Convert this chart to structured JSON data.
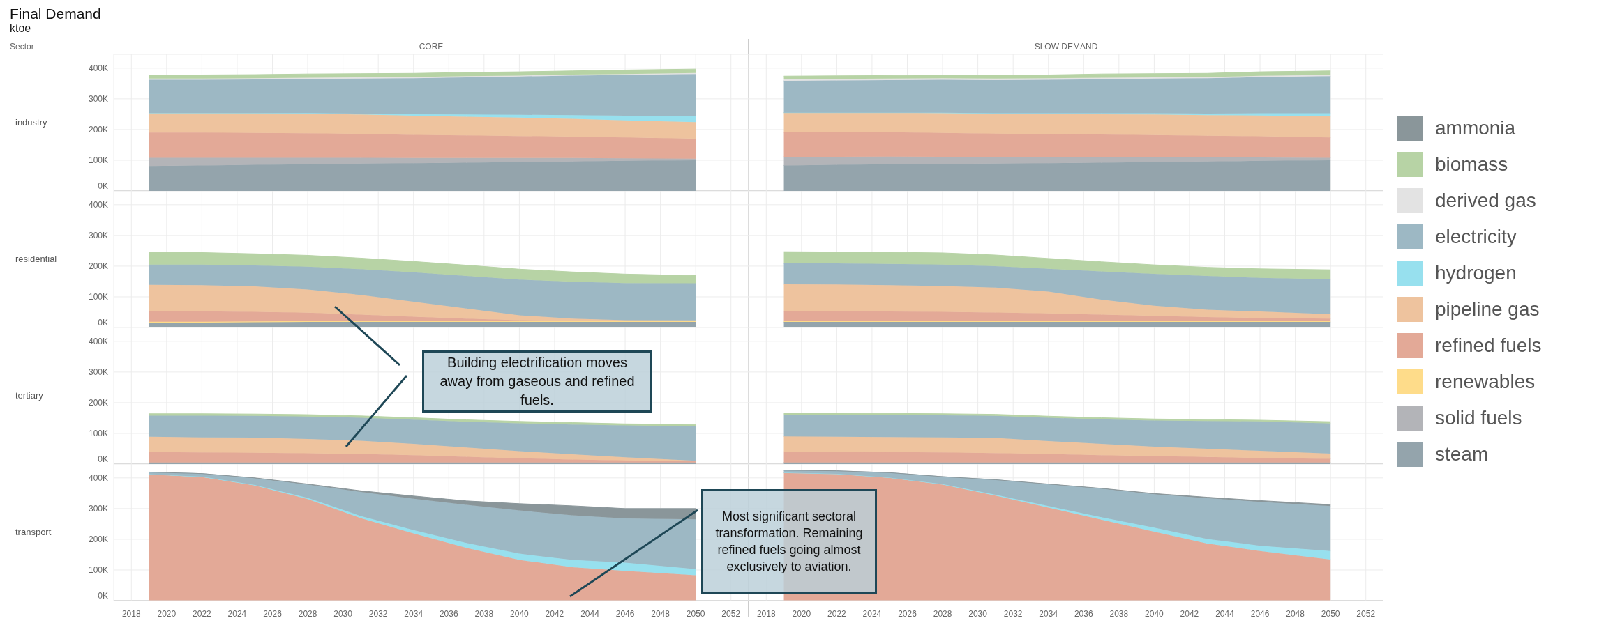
{
  "chart_data": [
    {
      "type": "area",
      "title": "Final Demand",
      "subtitle": "ktoe",
      "annotations": [
        "Sector",
        "CORE"
      ],
      "ylabel": "industry",
      "stacked": true,
      "legend": "right",
      "grid": true,
      "tick_labels": "y",
      "x": [
        2019,
        2022,
        2025,
        2028,
        2031,
        2034,
        2037,
        2040,
        2043,
        2046,
        2050
      ],
      "xlim": [
        2017,
        2053
      ],
      "xticks": [
        2018,
        2020,
        2022,
        2024,
        2026,
        2028,
        2030,
        2032,
        2034,
        2036,
        2038,
        2040,
        2042,
        2044,
        2046,
        2048,
        2050,
        2052
      ],
      "ylim": [
        0,
        445000
      ],
      "yticks": [
        {
          "value": 0,
          "label": "0K"
        },
        {
          "value": 100000,
          "label": "100K"
        },
        {
          "value": 200000,
          "label": "200K"
        },
        {
          "value": 300000,
          "label": "300K"
        },
        {
          "value": 400000,
          "label": "400K"
        }
      ],
      "series": [
        {
          "name": "steam",
          "color": "#94a4ac",
          "values": [
            81000,
            83000,
            85000,
            87000,
            89000,
            90000,
            92000,
            94000,
            96000,
            98000,
            100000
          ]
        },
        {
          "name": "solid fuels",
          "color": "#b3b4b8",
          "values": [
            27000,
            25000,
            23000,
            21000,
            19000,
            17000,
            15000,
            13000,
            11000,
            8000,
            5000
          ]
        },
        {
          "name": "refined fuels",
          "color": "#e3a997",
          "values": [
            82000,
            82000,
            81000,
            80000,
            78000,
            76000,
            74000,
            72000,
            70000,
            68000,
            65000
          ]
        },
        {
          "name": "pipeline gas",
          "color": "#eec39e",
          "values": [
            64000,
            64000,
            64000,
            64000,
            63000,
            62000,
            61000,
            60000,
            58000,
            56000,
            54000
          ]
        },
        {
          "name": "hydrogen",
          "color": "#97e0ee",
          "values": [
            0,
            0,
            1000,
            2000,
            3000,
            5000,
            7000,
            9000,
            12000,
            15000,
            20000
          ]
        },
        {
          "name": "electricity",
          "color": "#9db8c4",
          "values": [
            108000,
            108000,
            109000,
            111000,
            114000,
            117000,
            121000,
            125000,
            129000,
            133000,
            137000
          ]
        },
        {
          "name": "derived gas",
          "color": "#e3e3e3",
          "values": [
            4000,
            4000,
            4000,
            4000,
            4000,
            4000,
            4000,
            3000,
            3000,
            3000,
            3000
          ]
        },
        {
          "name": "biomass",
          "color": "#b7d3a5",
          "values": [
            12000,
            12000,
            12000,
            12000,
            12000,
            12000,
            12000,
            12000,
            12000,
            13000,
            13000
          ]
        }
      ]
    },
    {
      "type": "area",
      "annotations": [
        "SLOW DEMAND"
      ],
      "stacked": true,
      "grid": true,
      "tick_labels": false,
      "x": [
        2019,
        2022,
        2025,
        2028,
        2031,
        2034,
        2037,
        2040,
        2043,
        2046,
        2050
      ],
      "xlim": [
        2017,
        2053
      ],
      "xticks": [
        2018,
        2020,
        2022,
        2024,
        2026,
        2028,
        2030,
        2032,
        2034,
        2036,
        2038,
        2040,
        2042,
        2044,
        2046,
        2048,
        2050,
        2052
      ],
      "ylim": [
        0,
        445000
      ],
      "yticks": [
        0,
        100000,
        200000,
        300000,
        400000
      ],
      "series": [
        {
          "name": "steam",
          "color": "#94a4ac",
          "values": [
            83000,
            85000,
            87000,
            88000,
            89000,
            90000,
            92000,
            94000,
            96000,
            98000,
            100000
          ]
        },
        {
          "name": "solid fuels",
          "color": "#b3b4b8",
          "values": [
            28000,
            26000,
            25000,
            23000,
            21000,
            19000,
            17000,
            15000,
            13000,
            11000,
            8000
          ]
        },
        {
          "name": "refined fuels",
          "color": "#e3a997",
          "values": [
            80000,
            80000,
            79000,
            78000,
            77000,
            76000,
            75000,
            73000,
            71000,
            69000,
            66000
          ]
        },
        {
          "name": "pipeline gas",
          "color": "#eec39e",
          "values": [
            64000,
            64000,
            64000,
            65000,
            65000,
            66000,
            66000,
            67000,
            67000,
            68000,
            69000
          ]
        },
        {
          "name": "hydrogen",
          "color": "#97e0ee",
          "values": [
            0,
            0,
            0,
            1000,
            1000,
            2000,
            3000,
            4000,
            5000,
            7000,
            10000
          ]
        },
        {
          "name": "electricity",
          "color": "#9db8c4",
          "values": [
            104000,
            105000,
            106000,
            107000,
            108000,
            109000,
            111000,
            113000,
            115000,
            118000,
            121000
          ]
        },
        {
          "name": "derived gas",
          "color": "#e3e3e3",
          "values": [
            5000,
            5000,
            5000,
            5000,
            5000,
            5000,
            5000,
            4000,
            4000,
            4000,
            4000
          ]
        },
        {
          "name": "biomass",
          "color": "#b7d3a5",
          "values": [
            10000,
            10000,
            10000,
            11000,
            11000,
            11000,
            12000,
            12000,
            12000,
            13000,
            13000
          ]
        }
      ]
    },
    {
      "type": "area",
      "ylabel": "residential",
      "stacked": true,
      "grid": true,
      "tick_labels": "y",
      "x": [
        2019,
        2022,
        2025,
        2028,
        2031,
        2034,
        2037,
        2040,
        2043,
        2046,
        2050
      ],
      "xlim": [
        2017,
        2053
      ],
      "xticks": [
        2018,
        2020,
        2022,
        2024,
        2026,
        2028,
        2030,
        2032,
        2034,
        2036,
        2038,
        2040,
        2042,
        2044,
        2046,
        2048,
        2050,
        2052
      ],
      "ylim": [
        0,
        445000
      ],
      "yticks": [
        {
          "value": 0,
          "label": "0K"
        },
        {
          "value": 100000,
          "label": "100K"
        },
        {
          "value": 200000,
          "label": "200K"
        },
        {
          "value": 300000,
          "label": "300K"
        },
        {
          "value": 400000,
          "label": "400K"
        }
      ],
      "series": [
        {
          "name": "steam",
          "color": "#94a4ac",
          "values": [
            16000,
            16000,
            17000,
            18000,
            18000,
            18000,
            18000,
            18000,
            18000,
            18000,
            18000
          ]
        },
        {
          "name": "renewables",
          "color": "#fedc8a",
          "values": [
            3000,
            3000,
            3000,
            3000,
            3000,
            3000,
            3000,
            3000,
            3000,
            3000,
            3000
          ]
        },
        {
          "name": "refined fuels",
          "color": "#e3a997",
          "values": [
            34000,
            34000,
            31000,
            27000,
            21000,
            14000,
            8000,
            3000,
            1000,
            1000,
            1000
          ]
        },
        {
          "name": "pipeline gas",
          "color": "#eec39e",
          "values": [
            86000,
            85000,
            83000,
            76000,
            64000,
            49000,
            33000,
            16000,
            7000,
            2000,
            1000
          ]
        },
        {
          "name": "electricity",
          "color": "#9db8c4",
          "values": [
            66000,
            67000,
            68000,
            74000,
            84000,
            96000,
            106000,
            116000,
            120000,
            121000,
            121000
          ]
        },
        {
          "name": "biomass",
          "color": "#b7d3a5",
          "values": [
            39000,
            39000,
            38000,
            37000,
            36000,
            35000,
            35000,
            34000,
            32000,
            29000,
            25000
          ]
        }
      ]
    },
    {
      "type": "area",
      "stacked": true,
      "grid": true,
      "tick_labels": false,
      "x": [
        2019,
        2022,
        2025,
        2028,
        2031,
        2034,
        2037,
        2040,
        2043,
        2046,
        2050
      ],
      "xlim": [
        2017,
        2053
      ],
      "xticks": [
        2018,
        2020,
        2022,
        2024,
        2026,
        2028,
        2030,
        2032,
        2034,
        2036,
        2038,
        2040,
        2042,
        2044,
        2046,
        2048,
        2050,
        2052
      ],
      "ylim": [
        0,
        445000
      ],
      "yticks": [
        0,
        100000,
        200000,
        300000,
        400000
      ],
      "series": [
        {
          "name": "steam",
          "color": "#94a4ac",
          "values": [
            18000,
            18000,
            18000,
            18000,
            18000,
            18000,
            18000,
            18000,
            18000,
            18000,
            18000
          ]
        },
        {
          "name": "renewables",
          "color": "#fedc8a",
          "values": [
            3000,
            3000,
            3000,
            3000,
            3000,
            3000,
            3000,
            3000,
            3000,
            3000,
            3000
          ]
        },
        {
          "name": "refined fuels",
          "color": "#e3a997",
          "values": [
            32000,
            32000,
            31000,
            30000,
            28000,
            25000,
            21000,
            17000,
            13000,
            10000,
            8000
          ]
        },
        {
          "name": "pipeline gas",
          "color": "#eec39e",
          "values": [
            88000,
            87000,
            86000,
            84000,
            81000,
            71000,
            49000,
            33000,
            24000,
            21000,
            14000
          ]
        },
        {
          "name": "electricity",
          "color": "#9db8c4",
          "values": [
            68000,
            69000,
            69000,
            70000,
            70000,
            74000,
            92000,
            104000,
            110000,
            110000,
            114000
          ]
        },
        {
          "name": "biomass",
          "color": "#b7d3a5",
          "values": [
            38000,
            37000,
            38000,
            38000,
            36000,
            34000,
            31000,
            29000,
            28000,
            29000,
            31000
          ]
        }
      ]
    },
    {
      "type": "area",
      "ylabel": "tertiary",
      "annotations": [
        "Building electrification moves away from gaseous and refined fuels."
      ],
      "stacked": true,
      "grid": true,
      "tick_labels": "y",
      "x": [
        2019,
        2022,
        2025,
        2028,
        2031,
        2034,
        2037,
        2040,
        2043,
        2046,
        2050
      ],
      "xlim": [
        2017,
        2053
      ],
      "xticks": [
        2018,
        2020,
        2022,
        2024,
        2026,
        2028,
        2030,
        2032,
        2034,
        2036,
        2038,
        2040,
        2042,
        2044,
        2046,
        2048,
        2050,
        2052
      ],
      "ylim": [
        0,
        445000
      ],
      "yticks": [
        {
          "value": 0,
          "label": "0K"
        },
        {
          "value": 100000,
          "label": "100K"
        },
        {
          "value": 200000,
          "label": "200K"
        },
        {
          "value": 300000,
          "label": "300K"
        },
        {
          "value": 400000,
          "label": "400K"
        }
      ],
      "series": [
        {
          "name": "steam",
          "color": "#94a4ac",
          "values": [
            5000,
            5000,
            5000,
            5000,
            5000,
            5000,
            5000,
            5000,
            5000,
            5000,
            5000
          ]
        },
        {
          "name": "refined fuels",
          "color": "#e3a997",
          "values": [
            34000,
            33000,
            32000,
            30000,
            28000,
            24000,
            19000,
            14000,
            10000,
            7000,
            4000
          ]
        },
        {
          "name": "pipeline gas",
          "color": "#eec39e",
          "values": [
            50000,
            49000,
            49000,
            47000,
            43000,
            37000,
            30000,
            23000,
            17000,
            10000,
            2000
          ]
        },
        {
          "name": "electricity",
          "color": "#9db8c4",
          "values": [
            69000,
            71000,
            71000,
            73000,
            75000,
            79000,
            84000,
            91000,
            97000,
            104000,
            112000
          ]
        },
        {
          "name": "biomass",
          "color": "#b7d3a5",
          "values": [
            6000,
            6000,
            6000,
            6000,
            6000,
            6000,
            6000,
            6000,
            6000,
            5000,
            6000
          ]
        }
      ]
    },
    {
      "type": "area",
      "stacked": true,
      "grid": true,
      "tick_labels": false,
      "x": [
        2019,
        2022,
        2025,
        2028,
        2031,
        2034,
        2037,
        2040,
        2043,
        2046,
        2050
      ],
      "xlim": [
        2017,
        2053
      ],
      "xticks": [
        2018,
        2020,
        2022,
        2024,
        2026,
        2028,
        2030,
        2032,
        2034,
        2036,
        2038,
        2040,
        2042,
        2044,
        2046,
        2048,
        2050,
        2052
      ],
      "ylim": [
        0,
        445000
      ],
      "yticks": [
        0,
        100000,
        200000,
        300000,
        400000
      ],
      "series": [
        {
          "name": "steam",
          "color": "#94a4ac",
          "values": [
            5000,
            5000,
            5000,
            5000,
            5000,
            5000,
            5000,
            5000,
            5000,
            5000,
            5000
          ]
        },
        {
          "name": "refined fuels",
          "color": "#e3a997",
          "values": [
            35000,
            35000,
            34000,
            33000,
            31000,
            28000,
            24000,
            21000,
            18000,
            15000,
            12000
          ]
        },
        {
          "name": "pipeline gas",
          "color": "#eec39e",
          "values": [
            50000,
            49000,
            49000,
            49000,
            49000,
            42000,
            37000,
            31000,
            27000,
            23000,
            17000
          ]
        },
        {
          "name": "electricity",
          "color": "#9db8c4",
          "values": [
            71000,
            72000,
            72000,
            72000,
            72000,
            76000,
            80000,
            85000,
            90000,
            96000,
            98000
          ]
        },
        {
          "name": "biomass",
          "color": "#b7d3a5",
          "values": [
            5000,
            5000,
            5000,
            5000,
            5000,
            5000,
            5000,
            5000,
            5000,
            4000,
            6000
          ]
        }
      ]
    },
    {
      "type": "area",
      "ylabel": "transport",
      "annotations": [
        "Most significant sectoral transformation. Remaining refined fuels going almost exclusively to aviation."
      ],
      "stacked": true,
      "grid": true,
      "x": [
        2019,
        2022,
        2025,
        2028,
        2031,
        2034,
        2037,
        2040,
        2043,
        2046,
        2050
      ],
      "xlim": [
        2017,
        2053
      ],
      "xticks": [
        2018,
        2020,
        2022,
        2024,
        2026,
        2028,
        2030,
        2032,
        2034,
        2036,
        2038,
        2040,
        2042,
        2044,
        2046,
        2048,
        2050,
        2052
      ],
      "ylim": [
        0,
        445000
      ],
      "yticks": [
        {
          "value": 0,
          "label": "0K"
        },
        {
          "value": 100000,
          "label": "100K"
        },
        {
          "value": 200000,
          "label": "200K"
        },
        {
          "value": 300000,
          "label": "300K"
        },
        {
          "value": 400000,
          "label": "400K"
        }
      ],
      "series": [
        {
          "name": "refined fuels",
          "color": "#e3a997",
          "values": [
            412000,
            403000,
            375000,
            331000,
            269000,
            219000,
            172000,
            133000,
            109000,
            97000,
            83000
          ]
        },
        {
          "name": "hydrogen",
          "color": "#97e0ee",
          "values": [
            0,
            1000,
            2000,
            4000,
            7000,
            11000,
            16000,
            20000,
            24000,
            27000,
            20000
          ]
        },
        {
          "name": "electricity",
          "color": "#9db8c4",
          "values": [
            7000,
            10000,
            22000,
            43000,
            78000,
            102000,
            124000,
            141000,
            145000,
            144000,
            162000
          ]
        },
        {
          "name": "ammonia",
          "color": "#8a969a",
          "values": [
            0,
            0,
            1000,
            2000,
            4000,
            9000,
            13000,
            22000,
            31000,
            32000,
            35000
          ]
        }
      ]
    },
    {
      "type": "area",
      "stacked": true,
      "grid": true,
      "tick_labels": "x",
      "x": [
        2019,
        2022,
        2025,
        2028,
        2031,
        2034,
        2037,
        2040,
        2043,
        2046,
        2050
      ],
      "xlim": [
        2017,
        2053
      ],
      "xticks": [
        2018,
        2020,
        2022,
        2024,
        2026,
        2028,
        2030,
        2032,
        2034,
        2036,
        2038,
        2040,
        2042,
        2044,
        2046,
        2048,
        2050,
        2052
      ],
      "ylim": [
        0,
        445000
      ],
      "yticks": [
        0,
        100000,
        200000,
        300000,
        400000
      ],
      "series": [
        {
          "name": "refined fuels",
          "color": "#e3a997",
          "values": [
            417000,
            413000,
            400000,
            378000,
            342000,
            303000,
            264000,
            225000,
            186000,
            162000,
            134000
          ]
        },
        {
          "name": "hydrogen",
          "color": "#97e0ee",
          "values": [
            0,
            0,
            1000,
            2000,
            3000,
            5000,
            8000,
            13000,
            15000,
            17000,
            28000
          ]
        },
        {
          "name": "electricity",
          "color": "#9db8c4",
          "values": [
            8000,
            10000,
            16000,
            24000,
            49000,
            71000,
            93000,
            109000,
            133000,
            143000,
            146000
          ]
        },
        {
          "name": "ammonia",
          "color": "#8a969a",
          "values": [
            0,
            0,
            0,
            0,
            0,
            1000,
            1000,
            2000,
            3000,
            4000,
            5000
          ]
        }
      ]
    }
  ]
}
